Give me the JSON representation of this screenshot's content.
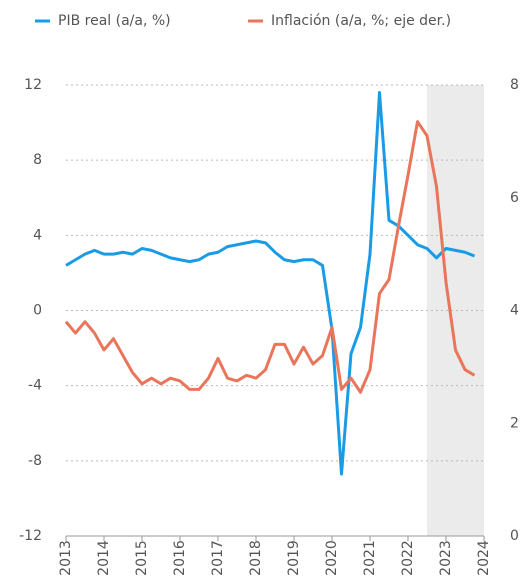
{
  "chart_data": {
    "type": "line",
    "x": [
      2013,
      2013.25,
      2013.5,
      2013.75,
      2014,
      2014.25,
      2014.5,
      2014.75,
      2015,
      2015.25,
      2015.5,
      2015.75,
      2016,
      2016.25,
      2016.5,
      2016.75,
      2017,
      2017.25,
      2017.5,
      2017.75,
      2018,
      2018.25,
      2018.5,
      2018.75,
      2019,
      2019.25,
      2019.5,
      2019.75,
      2020,
      2020.25,
      2020.5,
      2020.75,
      2021,
      2021.25,
      2021.5,
      2021.75,
      2022,
      2022.25,
      2022.5,
      2022.75,
      2023,
      2023.25,
      2023.5,
      2023.75
    ],
    "series": [
      {
        "name": "PIB real (a/a, %)",
        "color": "#1a9be6",
        "values": [
          2.4,
          2.7,
          3.0,
          3.2,
          3.0,
          3.0,
          3.1,
          3.0,
          3.3,
          3.2,
          3.0,
          2.8,
          2.7,
          2.6,
          2.7,
          3.0,
          3.1,
          3.4,
          3.5,
          3.6,
          3.7,
          3.6,
          3.1,
          2.7,
          2.6,
          2.7,
          2.7,
          2.4,
          -1.0,
          -8.7,
          -2.3,
          -0.9,
          3.0,
          11.6,
          4.8,
          4.5,
          4.0,
          3.5,
          3.3,
          2.8,
          3.3,
          3.2,
          3.1,
          2.9
        ]
      },
      {
        "name": "Inflación (a/a, %; eje der.)",
        "color": "#e9755a",
        "axis": "y2",
        "values": [
          3.8,
          3.6,
          3.8,
          3.6,
          3.3,
          3.5,
          3.2,
          2.9,
          2.7,
          2.8,
          2.7,
          2.8,
          2.75,
          2.6,
          2.6,
          2.8,
          3.15,
          2.8,
          2.75,
          2.85,
          2.8,
          2.95,
          3.4,
          3.4,
          3.05,
          3.35,
          3.05,
          3.2,
          3.7,
          2.6,
          2.8,
          2.55,
          2.95,
          4.3,
          4.55,
          5.5,
          6.4,
          7.35,
          7.1,
          6.2,
          4.5,
          3.3,
          2.95,
          2.85
        ]
      }
    ],
    "xlim": [
      2013,
      2024
    ],
    "xticks": [
      2013,
      2014,
      2015,
      2016,
      2017,
      2018,
      2019,
      2020,
      2021,
      2022,
      2023,
      2024
    ],
    "ylim": [
      -12,
      12
    ],
    "yticks": [
      -12,
      -8,
      -4,
      0,
      4,
      8,
      12
    ],
    "y2lim": [
      0,
      8
    ],
    "y2ticks": [
      0,
      2,
      4,
      6,
      8
    ],
    "shaded_region": {
      "x": [
        2022.5,
        2024
      ],
      "color": "#ebebeb"
    },
    "grid": true
  }
}
